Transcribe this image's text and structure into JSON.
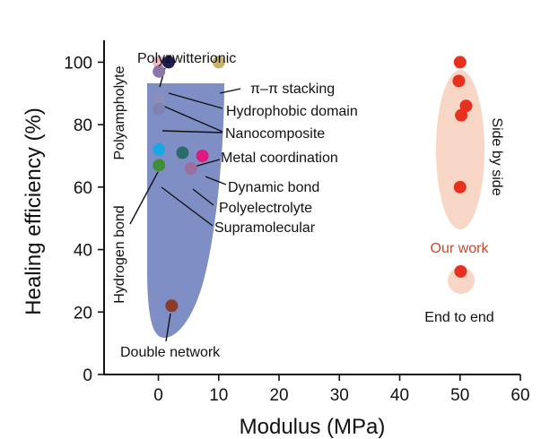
{
  "colors": {
    "region_fill": "#7f8fc6",
    "our_work_fill": "#f8d6c6",
    "our_work_point": "#e8301f",
    "our_work_label": "#c9482e",
    "axis": "#111111"
  },
  "chart_data": {
    "type": "scatter",
    "xlabel": "Modulus (MPa)",
    "ylabel": "Healing efficiency (%)",
    "xlim": [
      -9,
      60
    ],
    "ylim": [
      0,
      107
    ],
    "xticks": [
      0,
      10,
      20,
      30,
      40,
      50,
      60
    ],
    "yticks": [
      0,
      20,
      40,
      60,
      80,
      100
    ],
    "grid": false,
    "literature_points": [
      {
        "x": 0.1,
        "y": 100,
        "color": "#f2b6c6",
        "category": "Polyzwitterionic"
      },
      {
        "x": 1.7,
        "y": 100,
        "color": "#1d1b4f",
        "category": "Hydrophobic domain"
      },
      {
        "x": 10.0,
        "y": 100,
        "color": "#c8b36a",
        "category": "π–π stacking"
      },
      {
        "x": 0.1,
        "y": 97,
        "color": "#8a76a7",
        "category": "Polyampholyte"
      },
      {
        "x": 0.1,
        "y": 88,
        "color": "#8b8fb8",
        "category": "Nanocomposite"
      },
      {
        "x": 0.1,
        "y": 85,
        "color": "#7f83b2",
        "category": "Nanocomposite"
      },
      {
        "x": 0.1,
        "y": 72,
        "color": "#19a7e3",
        "category": "Hydrogen bond"
      },
      {
        "x": 4.0,
        "y": 71,
        "color": "#2c6b6b",
        "category": "Metal coordination"
      },
      {
        "x": 7.3,
        "y": 70,
        "color": "#e2197c",
        "category": "Dynamic bond"
      },
      {
        "x": 5.4,
        "y": 66,
        "color": "#9d6f9f",
        "category": "Polyelectrolyte"
      },
      {
        "x": 0.1,
        "y": 67,
        "color": "#3e8e3b",
        "category": "Supramolecular"
      },
      {
        "x": 2.2,
        "y": 22,
        "color": "#8b3b28",
        "category": "Double network"
      }
    ],
    "our_work_points": [
      {
        "x": 50.0,
        "y": 100,
        "mode": "Side by side"
      },
      {
        "x": 49.8,
        "y": 94,
        "mode": "Side by side"
      },
      {
        "x": 51.0,
        "y": 86,
        "mode": "Side by side"
      },
      {
        "x": 50.2,
        "y": 83,
        "mode": "Side by side"
      },
      {
        "x": 50.0,
        "y": 60,
        "mode": "Side by side"
      },
      {
        "x": 50.1,
        "y": 33,
        "mode": "End to end"
      }
    ],
    "annotations": {
      "polyzwitterionic": "Polyzwitterionic",
      "pi_stacking": "π–π stacking",
      "hydrophobic": "Hydrophobic domain",
      "nanocomposite": "Nanocomposite",
      "metal": "Metal coordination",
      "dynamic": "Dynamic bond",
      "polyelectrolyte": "Polyelectrolyte",
      "supramolecular": "Supramolecular",
      "double_network": "Double network",
      "polyampholyte": "Polyampholyte",
      "hydrogen_bond": "Hydrogen bond",
      "side_by_side": "Side by side",
      "our_work": "Our work",
      "end_to_end": "End to end"
    }
  }
}
